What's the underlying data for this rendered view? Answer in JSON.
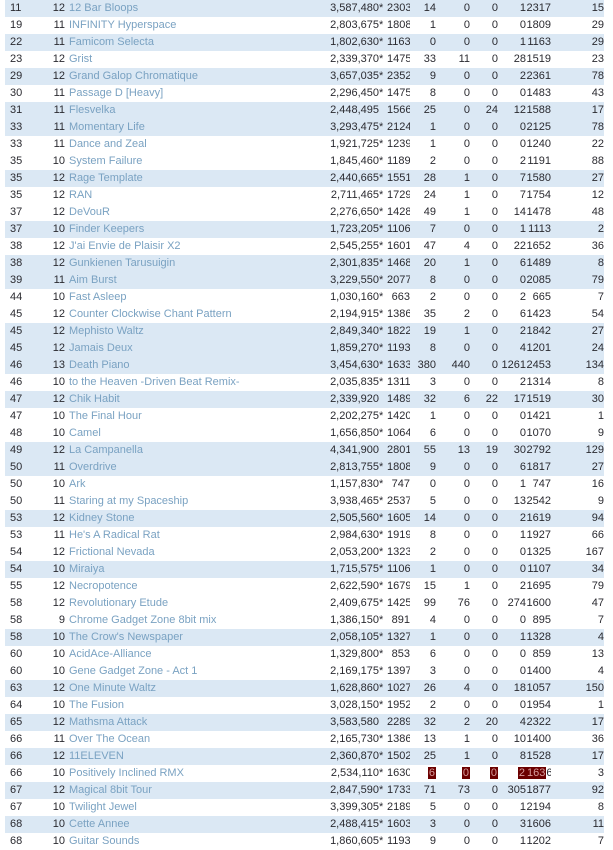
{
  "colors": {
    "row_stripe": "#dbe8f4",
    "row_plain": "#ffffff",
    "text": "#2a2a30",
    "title_link": "#7aa2c2",
    "selection_background": "#6b0000",
    "selection_text": "#d89b9b"
  },
  "table": {
    "rows": [
      {
        "rank": "11",
        "level": "12",
        "title": "12 Bar Bloops",
        "score": "3,587,480",
        "star": true,
        "vals": [
          "2303",
          "14",
          "0",
          "0",
          "1",
          "2317",
          "15"
        ],
        "shaded": true
      },
      {
        "rank": "19",
        "level": "11",
        "title": "INFINITY Hyperspace",
        "score": "2,803,675",
        "star": true,
        "vals": [
          "1808",
          "1",
          "0",
          "0",
          "0",
          "1809",
          "29"
        ],
        "shaded": false
      },
      {
        "rank": "22",
        "level": "11",
        "title": "Famicom Selecta",
        "score": "1,802,630",
        "star": true,
        "vals": [
          "1163",
          "0",
          "0",
          "0",
          "1",
          "1163",
          "29"
        ],
        "shaded": true
      },
      {
        "rank": "23",
        "level": "12",
        "title": "Grist",
        "score": "2,339,370",
        "star": true,
        "vals": [
          "1475",
          "33",
          "11",
          "0",
          "28",
          "1519",
          "23"
        ],
        "shaded": false
      },
      {
        "rank": "29",
        "level": "12",
        "title": "Grand Galop Chromatique",
        "score": "3,657,035",
        "star": true,
        "vals": [
          "2352",
          "9",
          "0",
          "0",
          "2",
          "2361",
          "78"
        ],
        "shaded": true
      },
      {
        "rank": "30",
        "level": "11",
        "title": "Passage D [Heavy]",
        "score": "2,296,450",
        "star": true,
        "vals": [
          "1475",
          "8",
          "0",
          "0",
          "0",
          "1483",
          "43"
        ],
        "shaded": false
      },
      {
        "rank": "31",
        "level": "11",
        "title": "Flesvelka",
        "score": "2,448,495",
        "star": false,
        "vals": [
          "1566",
          "25",
          "0",
          "24",
          "12",
          "1588",
          "17"
        ],
        "shaded": true
      },
      {
        "rank": "33",
        "level": "11",
        "title": "Momentary Life",
        "score": "3,293,475",
        "star": true,
        "vals": [
          "2124",
          "1",
          "0",
          "0",
          "0",
          "2125",
          "78"
        ],
        "shaded": true
      },
      {
        "rank": "33",
        "level": "11",
        "title": "Dance and Zeal",
        "score": "1,921,725",
        "star": true,
        "vals": [
          "1239",
          "1",
          "0",
          "0",
          "0",
          "1240",
          "22"
        ],
        "shaded": false
      },
      {
        "rank": "35",
        "level": "10",
        "title": "System Failure",
        "score": "1,845,460",
        "star": true,
        "vals": [
          "1189",
          "2",
          "0",
          "0",
          "2",
          "1191",
          "88"
        ],
        "shaded": false
      },
      {
        "rank": "35",
        "level": "12",
        "title": "Rage Template",
        "score": "2,440,665",
        "star": true,
        "vals": [
          "1551",
          "28",
          "1",
          "0",
          "7",
          "1580",
          "27"
        ],
        "shaded": true
      },
      {
        "rank": "35",
        "level": "12",
        "title": "RAN",
        "score": "2,711,465",
        "star": true,
        "vals": [
          "1729",
          "24",
          "1",
          "0",
          "7",
          "1754",
          "12"
        ],
        "shaded": false
      },
      {
        "rank": "37",
        "level": "12",
        "title": "DeVouR",
        "score": "2,276,650",
        "star": true,
        "vals": [
          "1428",
          "49",
          "1",
          "0",
          "14",
          "1478",
          "48"
        ],
        "shaded": false
      },
      {
        "rank": "37",
        "level": "10",
        "title": "Finder Keepers",
        "score": "1,723,205",
        "star": true,
        "vals": [
          "1106",
          "7",
          "0",
          "0",
          "1",
          "1113",
          "2"
        ],
        "shaded": true
      },
      {
        "rank": "38",
        "level": "12",
        "title": "J'ai Envie de Plaisir X2",
        "score": "2,545,255",
        "star": true,
        "vals": [
          "1601",
          "47",
          "4",
          "0",
          "22",
          "1652",
          "36"
        ],
        "shaded": false
      },
      {
        "rank": "38",
        "level": "12",
        "title": "Gunkienen Tarusuigin",
        "score": "2,301,835",
        "star": true,
        "vals": [
          "1468",
          "20",
          "1",
          "0",
          "6",
          "1489",
          "8"
        ],
        "shaded": true
      },
      {
        "rank": "39",
        "level": "11",
        "title": "Aim Burst",
        "score": "3,229,550",
        "star": true,
        "vals": [
          "2077",
          "8",
          "0",
          "0",
          "0",
          "2085",
          "79"
        ],
        "shaded": true
      },
      {
        "rank": "44",
        "level": "10",
        "title": "Fast Asleep",
        "score": "1,030,160",
        "star": true,
        "vals": [
          "663",
          "2",
          "0",
          "0",
          "2",
          "665",
          "7"
        ],
        "shaded": false
      },
      {
        "rank": "45",
        "level": "12",
        "title": "Counter Clockwise Chant Pattern",
        "score": "2,194,915",
        "star": true,
        "vals": [
          "1386",
          "35",
          "2",
          "0",
          "6",
          "1423",
          "54"
        ],
        "shaded": false
      },
      {
        "rank": "45",
        "level": "12",
        "title": "Mephisto Waltz",
        "score": "2,849,340",
        "star": true,
        "vals": [
          "1822",
          "19",
          "1",
          "0",
          "2",
          "1842",
          "27"
        ],
        "shaded": true
      },
      {
        "rank": "45",
        "level": "12",
        "title": "Jamais Deux",
        "score": "1,859,270",
        "star": true,
        "vals": [
          "1193",
          "8",
          "0",
          "0",
          "4",
          "1201",
          "24"
        ],
        "shaded": true
      },
      {
        "rank": "46",
        "level": "13",
        "title": "Death Piano",
        "score": "3,454,630",
        "star": true,
        "vals": [
          "1633",
          "380",
          "440",
          "0",
          "1261",
          "2453",
          "134"
        ],
        "shaded": true
      },
      {
        "rank": "46",
        "level": "10",
        "title": "to the Heaven -Driven Beat Remix-",
        "score": "2,035,835",
        "star": true,
        "vals": [
          "1311",
          "3",
          "0",
          "0",
          "2",
          "1314",
          "8"
        ],
        "shaded": false
      },
      {
        "rank": "47",
        "level": "12",
        "title": "Chik Habit",
        "score": "2,339,920",
        "star": false,
        "vals": [
          "1489",
          "32",
          "6",
          "22",
          "17",
          "1519",
          "30"
        ],
        "shaded": true
      },
      {
        "rank": "47",
        "level": "10",
        "title": "The Final Hour",
        "score": "2,202,275",
        "star": true,
        "vals": [
          "1420",
          "1",
          "0",
          "0",
          "0",
          "1421",
          "1"
        ],
        "shaded": false
      },
      {
        "rank": "48",
        "level": "10",
        "title": "Camel",
        "score": "1,656,850",
        "star": true,
        "vals": [
          "1064",
          "6",
          "0",
          "0",
          "0",
          "1070",
          "9"
        ],
        "shaded": false
      },
      {
        "rank": "49",
        "level": "12",
        "title": "La Campanella",
        "score": "4,341,900",
        "star": false,
        "vals": [
          "2801",
          "55",
          "13",
          "19",
          "30",
          "2792",
          "129"
        ],
        "shaded": true
      },
      {
        "rank": "50",
        "level": "11",
        "title": "Overdrive",
        "score": "2,813,755",
        "star": true,
        "vals": [
          "1808",
          "9",
          "0",
          "0",
          "6",
          "1817",
          "27"
        ],
        "shaded": true
      },
      {
        "rank": "50",
        "level": "10",
        "title": "Ark",
        "score": "1,157,830",
        "star": true,
        "vals": [
          "747",
          "0",
          "0",
          "0",
          "1",
          "747",
          "16"
        ],
        "shaded": false
      },
      {
        "rank": "50",
        "level": "11",
        "title": "Staring at my Spaceship",
        "score": "3,938,465",
        "star": true,
        "vals": [
          "2537",
          "5",
          "0",
          "0",
          "13",
          "2542",
          "9"
        ],
        "shaded": false
      },
      {
        "rank": "53",
        "level": "12",
        "title": "Kidney Stone",
        "score": "2,505,560",
        "star": true,
        "vals": [
          "1605",
          "14",
          "0",
          "0",
          "2",
          "1619",
          "94"
        ],
        "shaded": true
      },
      {
        "rank": "53",
        "level": "11",
        "title": "He's A Radical Rat",
        "score": "2,984,630",
        "star": true,
        "vals": [
          "1919",
          "8",
          "0",
          "0",
          "1",
          "1927",
          "66"
        ],
        "shaded": false
      },
      {
        "rank": "54",
        "level": "12",
        "title": "Frictional Nevada",
        "score": "2,053,200",
        "star": true,
        "vals": [
          "1323",
          "2",
          "0",
          "0",
          "0",
          "1325",
          "167"
        ],
        "shaded": false
      },
      {
        "rank": "54",
        "level": "10",
        "title": "Miraiya",
        "score": "1,715,575",
        "star": true,
        "vals": [
          "1106",
          "1",
          "0",
          "0",
          "0",
          "1107",
          "34"
        ],
        "shaded": true
      },
      {
        "rank": "55",
        "level": "12",
        "title": "Necropotence",
        "score": "2,622,590",
        "star": true,
        "vals": [
          "1679",
          "15",
          "1",
          "0",
          "2",
          "1695",
          "79"
        ],
        "shaded": false
      },
      {
        "rank": "58",
        "level": "12",
        "title": "Revolutionary Etude",
        "score": "2,409,675",
        "star": true,
        "vals": [
          "1425",
          "99",
          "76",
          "0",
          "274",
          "1600",
          "47"
        ],
        "shaded": false
      },
      {
        "rank": "58",
        "level": "9",
        "title": "Chrome Gadget Zone 8bit mix",
        "score": "1,386,150",
        "star": true,
        "vals": [
          "891",
          "4",
          "0",
          "0",
          "0",
          "895",
          "7"
        ],
        "shaded": false
      },
      {
        "rank": "58",
        "level": "10",
        "title": "The Crow's Newspaper",
        "score": "2,058,105",
        "star": true,
        "vals": [
          "1327",
          "1",
          "0",
          "0",
          "1",
          "1328",
          "4"
        ],
        "shaded": true
      },
      {
        "rank": "60",
        "level": "10",
        "title": "AcidAce-Alliance",
        "score": "1,329,800",
        "star": true,
        "vals": [
          "853",
          "6",
          "0",
          "0",
          "0",
          "859",
          "13"
        ],
        "shaded": false
      },
      {
        "rank": "60",
        "level": "10",
        "title": "Gene Gadget Zone - Act 1",
        "score": "2,169,175",
        "star": true,
        "vals": [
          "1397",
          "3",
          "0",
          "0",
          "0",
          "1400",
          "4"
        ],
        "shaded": false
      },
      {
        "rank": "63",
        "level": "12",
        "title": "One Minute Waltz",
        "score": "1,628,860",
        "star": true,
        "vals": [
          "1027",
          "26",
          "4",
          "0",
          "18",
          "1057",
          "150"
        ],
        "shaded": true
      },
      {
        "rank": "64",
        "level": "10",
        "title": "The Fusion",
        "score": "3,028,150",
        "star": true,
        "vals": [
          "1952",
          "2",
          "0",
          "0",
          "0",
          "1954",
          "1"
        ],
        "shaded": false
      },
      {
        "rank": "65",
        "level": "12",
        "title": "Mathsma Attack",
        "score": "3,583,580",
        "star": false,
        "vals": [
          "2289",
          "32",
          "2",
          "20",
          "4",
          "2322",
          "17"
        ],
        "shaded": true
      },
      {
        "rank": "66",
        "level": "11",
        "title": "Over The Ocean",
        "score": "2,165,730",
        "star": true,
        "vals": [
          "1386",
          "13",
          "1",
          "0",
          "10",
          "1400",
          "36"
        ],
        "shaded": false
      },
      {
        "rank": "66",
        "level": "12",
        "title": "11ELEVEN",
        "score": "2,360,870",
        "star": true,
        "vals": [
          "1502",
          "25",
          "1",
          "0",
          "8",
          "1528",
          "17"
        ],
        "shaded": true
      },
      {
        "rank": "66",
        "level": "10",
        "title": "Positively Inclined RMX",
        "score": "2,534,110",
        "star": true,
        "vals": [
          "1630",
          "6",
          "0",
          "0",
          "2",
          "1636",
          "3"
        ],
        "shaded": false,
        "sel": {
          "full": [
            1,
            2,
            3,
            4
          ],
          "partial": {
            "index": 5,
            "prefix": "163"
          }
        }
      },
      {
        "rank": "67",
        "level": "12",
        "title": "Magical 8bit Tour",
        "score": "2,847,590",
        "star": true,
        "vals": [
          "1733",
          "71",
          "73",
          "0",
          "305",
          "1877",
          "92"
        ],
        "shaded": true
      },
      {
        "rank": "67",
        "level": "10",
        "title": "Twilight Jewel",
        "score": "3,399,305",
        "star": true,
        "vals": [
          "2189",
          "5",
          "0",
          "0",
          "1",
          "2194",
          "8"
        ],
        "shaded": false
      },
      {
        "rank": "68",
        "level": "10",
        "title": "Cette Annee",
        "score": "2,488,415",
        "star": true,
        "vals": [
          "1603",
          "3",
          "0",
          "0",
          "3",
          "1606",
          "11"
        ],
        "shaded": true
      },
      {
        "rank": "68",
        "level": "10",
        "title": "Guitar Sounds",
        "score": "1,860,605",
        "star": true,
        "vals": [
          "1193",
          "9",
          "0",
          "0",
          "1",
          "1202",
          "7"
        ],
        "shaded": false
      }
    ]
  }
}
